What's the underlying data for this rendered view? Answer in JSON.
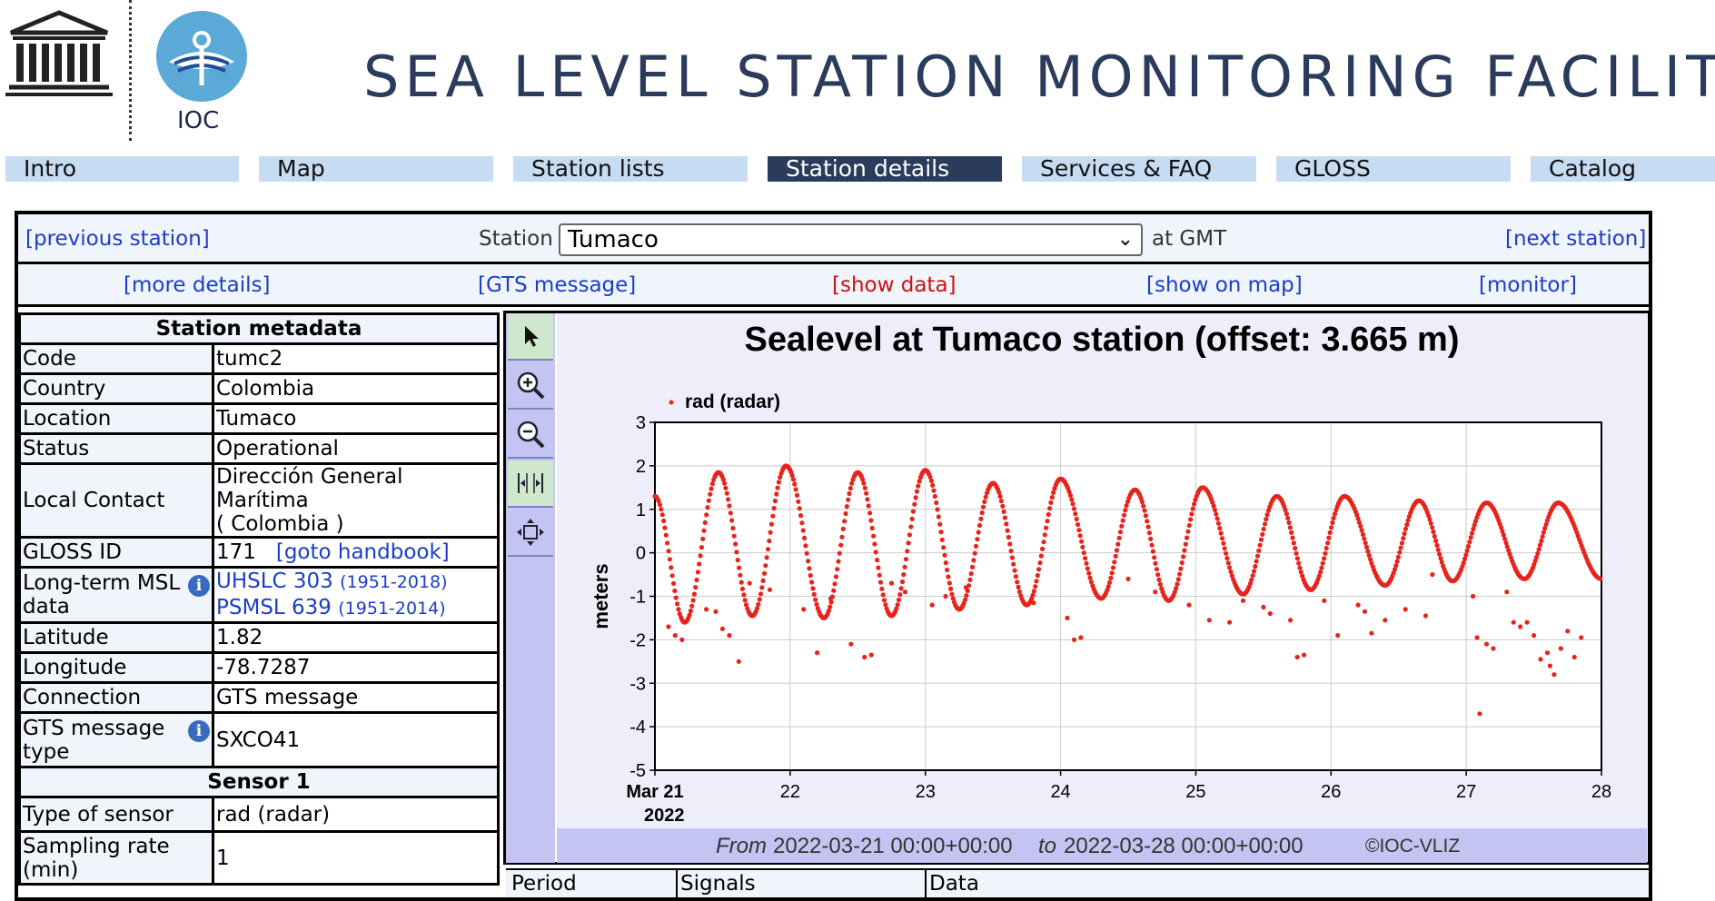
{
  "header": {
    "unesco_logo_text": "UNESCO",
    "ioc_label": "IOC",
    "title": "SEA LEVEL STATION MONITORING FACILITY"
  },
  "nav": [
    {
      "label": "Intro",
      "active": false
    },
    {
      "label": "Map",
      "active": false
    },
    {
      "label": "Station lists",
      "active": false
    },
    {
      "label": "Station details",
      "active": true
    },
    {
      "label": "Services & FAQ",
      "active": false
    },
    {
      "label": "GLOSS",
      "active": false
    },
    {
      "label": "Catalog",
      "active": false
    }
  ],
  "station_bar": {
    "prev": "[previous station]",
    "station_label": "Station",
    "selected_station": "Tumaco",
    "at_gmt": "at GMT",
    "next": "[next station]"
  },
  "links": {
    "more_details": "[more details]",
    "gts_message": "[GTS message]",
    "show_data": "[show data]",
    "show_on_map": "[show on map]",
    "monitor": "[monitor]"
  },
  "metadata": {
    "title": "Station metadata",
    "code_label": "Code",
    "code": "tumc2",
    "country_label": "Country",
    "country": "Colombia",
    "location_label": "Location",
    "location": "Tumaco",
    "status_label": "Status",
    "status": "Operational",
    "contact_label": "Local Contact",
    "contact_line1": "Dirección General Marítima",
    "contact_line2": "( Colombia )",
    "gloss_label": "GLOSS ID",
    "gloss_id": "171",
    "gloss_link": "[goto handbook]",
    "msl_label_1": "Long-term MSL",
    "msl_label_2": "data",
    "uhslc": "UHSLC 303",
    "uhslc_years": "(1951-2018)",
    "psmsl": "PSMSL 639",
    "psmsl_years": "(1951-2014)",
    "lat_label": "Latitude",
    "lat": "1.82",
    "lon_label": "Longitude",
    "lon": "-78.7287",
    "conn_label": "Connection",
    "conn": "GTS message",
    "gts_type_label_1": "GTS message",
    "gts_type_label_2": "type",
    "gts_type": "SXCO41",
    "sensor_title": "Sensor 1",
    "sensor_type_label": "Type of sensor",
    "sensor_type": "rad (radar)",
    "sampling_label_1": "Sampling rate",
    "sampling_label_2": "(min)",
    "sampling": "1"
  },
  "toolbar_icons": [
    "pointer-icon",
    "zoom-in-icon",
    "zoom-out-icon",
    "fit-horizontal-icon",
    "fit-all-icon"
  ],
  "chart_data": {
    "type": "scatter",
    "title": "Sealevel at Tumaco station (offset: 3.665 m)",
    "ylabel": "meters",
    "xlabel": "",
    "ylim": [
      -5,
      3
    ],
    "yticks": [
      "3",
      "2",
      "1",
      "0",
      "-1",
      "-2",
      "-3",
      "-4",
      "-5"
    ],
    "xlim_days": [
      0,
      7
    ],
    "xticks": [
      {
        "day": 0,
        "label": "Mar 21",
        "sub": "2022"
      },
      {
        "day": 1,
        "label": "22"
      },
      {
        "day": 2,
        "label": "23"
      },
      {
        "day": 3,
        "label": "24"
      },
      {
        "day": 4,
        "label": "25"
      },
      {
        "day": 5,
        "label": "26"
      },
      {
        "day": 6,
        "label": "27"
      },
      {
        "day": 7,
        "label": "28"
      }
    ],
    "grid": true,
    "legend": "top-left",
    "series": [
      {
        "name": "rad (radar)",
        "color": "#e8231b",
        "tide_peaks": [
          {
            "day": 0.47,
            "high": 1.85,
            "low": -1.6
          },
          {
            "day": 0.97,
            "high": 2.0,
            "low": -1.45
          },
          {
            "day": 1.5,
            "high": 1.85,
            "low": -1.5
          },
          {
            "day": 2.0,
            "high": 1.9,
            "low": -1.45
          },
          {
            "day": 2.5,
            "high": 1.6,
            "low": -1.3
          },
          {
            "day": 3.0,
            "high": 1.7,
            "low": -1.2
          },
          {
            "day": 3.55,
            "high": 1.45,
            "low": -1.05
          },
          {
            "day": 4.05,
            "high": 1.5,
            "low": -1.1
          },
          {
            "day": 4.6,
            "high": 1.3,
            "low": -0.95
          },
          {
            "day": 5.1,
            "high": 1.3,
            "low": -0.85
          },
          {
            "day": 5.65,
            "high": 1.2,
            "low": -0.75
          },
          {
            "day": 6.15,
            "high": 1.15,
            "low": -0.65
          },
          {
            "day": 6.68,
            "high": 1.15,
            "low": -0.6
          }
        ],
        "outliers": [
          [
            0.1,
            -1.7
          ],
          [
            0.15,
            -1.9
          ],
          [
            0.2,
            -2.0
          ],
          [
            0.38,
            -1.3
          ],
          [
            0.45,
            -1.35
          ],
          [
            0.5,
            -1.75
          ],
          [
            0.55,
            -1.9
          ],
          [
            0.62,
            -2.5
          ],
          [
            0.7,
            -0.7
          ],
          [
            0.85,
            -0.85
          ],
          [
            1.1,
            -1.3
          ],
          [
            1.2,
            -2.3
          ],
          [
            1.3,
            -1.05
          ],
          [
            1.45,
            -2.1
          ],
          [
            1.55,
            -2.4
          ],
          [
            1.6,
            -2.35
          ],
          [
            1.75,
            -0.7
          ],
          [
            1.85,
            -0.9
          ],
          [
            2.05,
            -1.2
          ],
          [
            2.15,
            -1.0
          ],
          [
            2.3,
            -0.8
          ],
          [
            2.8,
            -1.15
          ],
          [
            3.05,
            -1.5
          ],
          [
            3.1,
            -2.0
          ],
          [
            3.15,
            -1.95
          ],
          [
            3.5,
            -0.6
          ],
          [
            3.7,
            -0.9
          ],
          [
            3.95,
            -1.2
          ],
          [
            4.1,
            -1.55
          ],
          [
            4.25,
            -1.6
          ],
          [
            4.35,
            -1.1
          ],
          [
            4.5,
            -1.25
          ],
          [
            4.55,
            -1.4
          ],
          [
            4.7,
            -1.55
          ],
          [
            4.75,
            -2.4
          ],
          [
            4.8,
            -2.35
          ],
          [
            4.95,
            -1.1
          ],
          [
            5.05,
            -1.9
          ],
          [
            5.2,
            -1.2
          ],
          [
            5.25,
            -1.35
          ],
          [
            5.3,
            -1.85
          ],
          [
            5.4,
            -1.55
          ],
          [
            5.55,
            -1.3
          ],
          [
            5.7,
            -1.45
          ],
          [
            5.75,
            -0.5
          ],
          [
            6.05,
            -1.0
          ],
          [
            6.08,
            -1.95
          ],
          [
            6.1,
            -3.7
          ],
          [
            6.15,
            -2.1
          ],
          [
            6.2,
            -2.2
          ],
          [
            6.3,
            -0.9
          ],
          [
            6.35,
            -1.6
          ],
          [
            6.4,
            -1.7
          ],
          [
            6.45,
            -1.6
          ],
          [
            6.5,
            -1.9
          ],
          [
            6.55,
            -2.45
          ],
          [
            6.6,
            -2.3
          ],
          [
            6.62,
            -2.6
          ],
          [
            6.65,
            -2.8
          ],
          [
            6.7,
            -2.2
          ],
          [
            6.75,
            -1.8
          ],
          [
            6.8,
            -2.4
          ],
          [
            6.85,
            -1.95
          ]
        ]
      }
    ]
  },
  "chart_footer": {
    "from_word": "From",
    "from_value": "2022-03-21 00:00+00:00",
    "to_word": "to",
    "to_value": "2022-03-28 00:00+00:00",
    "credit": "©IOC-VLIZ"
  },
  "table_header": {
    "period": "Period",
    "signals": "Signals",
    "data": "Data"
  }
}
